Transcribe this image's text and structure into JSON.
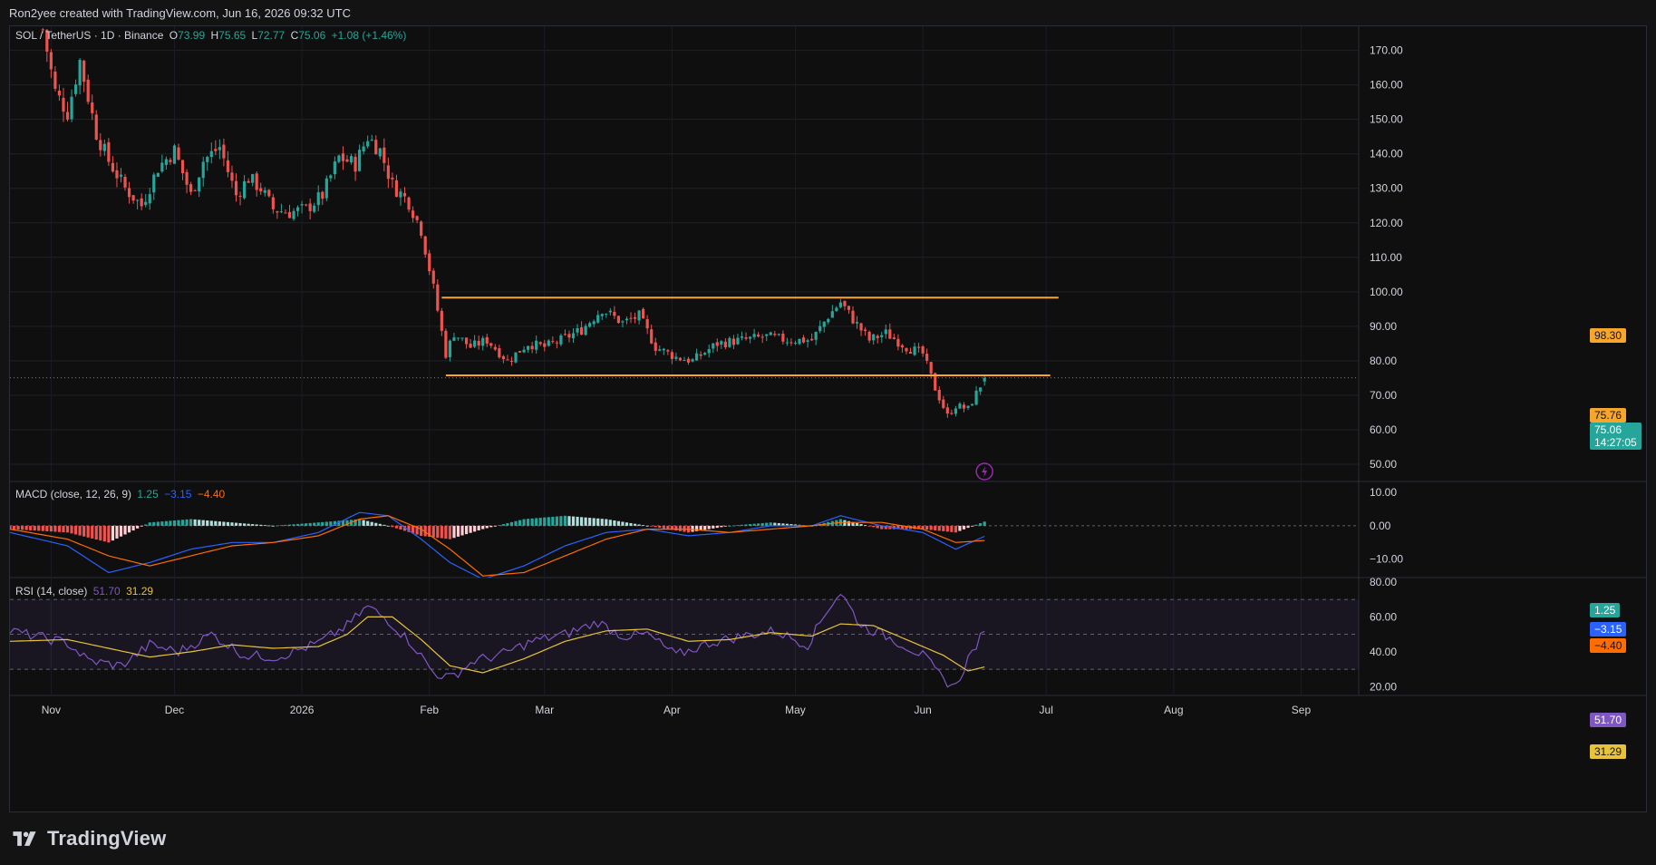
{
  "header": {
    "text": "Ron2yee created with TradingView.com, Jun 16, 2026 09:32 UTC"
  },
  "legend": {
    "symbol": "SOL / TetherUS · 1D · Binance",
    "o_label": "O",
    "o_value": "73.99",
    "h_label": "H",
    "h_value": "75.65",
    "l_label": "L",
    "l_value": "72.77",
    "c_label": "C",
    "c_value": "75.06",
    "change": "+1.08 (+1.46%)"
  },
  "macd_legend": {
    "title": "MACD (close, 12, 26, 9)",
    "v1": "1.25",
    "v2": "−3.15",
    "v3": "−4.40"
  },
  "rsi_legend": {
    "title": "RSI (14, close)",
    "v1": "51.70",
    "v2": "31.29"
  },
  "price_tags": {
    "resistance": "98.30",
    "support": "75.76",
    "last": "75.06",
    "countdown": "14:27:05",
    "macd_hist": "1.25",
    "macd_line": "−3.15",
    "macd_signal": "−4.40",
    "rsi": "51.70",
    "rsi_ma": "31.29"
  },
  "price_axis": [
    "170.00",
    "160.00",
    "150.00",
    "140.00",
    "130.00",
    "120.00",
    "110.00",
    "100.00",
    "90.00",
    "80.00",
    "70.00",
    "60.00",
    "50.00"
  ],
  "macd_axis": [
    "10.00",
    "0.00",
    "−10.00"
  ],
  "rsi_axis": [
    "80.00",
    "60.00",
    "40.00",
    "20.00"
  ],
  "time_axis": [
    "Nov",
    "Dec",
    "2026",
    "Feb",
    "Mar",
    "Apr",
    "May",
    "Jun",
    "Jul",
    "Aug",
    "Sep"
  ],
  "footer": {
    "brand": "TradingView"
  },
  "colors": {
    "up": "#26a69a",
    "down": "#ef5350",
    "level": "#f7a62c",
    "macd": "#2962ff",
    "signal": "#ff6d00",
    "rsi": "#7e57c2",
    "rsi_ma": "#e6c33a"
  },
  "chart_data": [
    {
      "type": "candlestick",
      "title": "SOL / TetherUS · 1D · Binance",
      "x_range": [
        "2025-10-22",
        "2026-09-15"
      ],
      "ylim": [
        45,
        177
      ],
      "levels": [
        {
          "label": "98.30",
          "value": 98.3,
          "from": "2026-02-04",
          "to": "2026-07-04"
        },
        {
          "label": "75.76",
          "value": 75.76,
          "from": "2026-02-05",
          "to": "2026-07-02"
        }
      ],
      "last_close": 75.06,
      "close_path": [
        [
          "2025-10-30",
          176
        ],
        [
          "2025-11-02",
          158
        ],
        [
          "2025-11-05",
          152
        ],
        [
          "2025-11-08",
          167
        ],
        [
          "2025-11-12",
          146
        ],
        [
          "2025-11-15",
          138
        ],
        [
          "2025-11-19",
          130
        ],
        [
          "2025-11-23",
          125
        ],
        [
          "2025-11-27",
          136
        ],
        [
          "2025-12-01",
          141
        ],
        [
          "2025-12-05",
          128
        ],
        [
          "2025-12-08",
          138
        ],
        [
          "2025-12-12",
          142
        ],
        [
          "2025-12-16",
          128
        ],
        [
          "2025-12-19",
          133
        ],
        [
          "2025-12-22",
          130
        ],
        [
          "2025-12-25",
          124
        ],
        [
          "2025-12-29",
          123
        ],
        [
          "2026-01-02",
          124
        ],
        [
          "2026-01-06",
          128
        ],
        [
          "2026-01-10",
          139
        ],
        [
          "2026-01-14",
          137
        ],
        [
          "2026-01-17",
          145
        ],
        [
          "2026-01-20",
          141
        ],
        [
          "2026-01-23",
          131
        ],
        [
          "2026-01-27",
          126
        ],
        [
          "2026-01-30",
          118
        ],
        [
          "2026-02-02",
          101
        ],
        [
          "2026-02-05",
          82
        ],
        [
          "2026-02-07",
          88
        ],
        [
          "2026-02-11",
          84
        ],
        [
          "2026-02-15",
          86
        ],
        [
          "2026-02-20",
          80
        ],
        [
          "2026-02-25",
          85
        ],
        [
          "2026-03-01",
          84
        ],
        [
          "2026-03-05",
          86
        ],
        [
          "2026-03-10",
          89
        ],
        [
          "2026-03-15",
          95
        ],
        [
          "2026-03-20",
          91
        ],
        [
          "2026-03-24",
          93
        ],
        [
          "2026-03-28",
          84
        ],
        [
          "2026-04-02",
          81
        ],
        [
          "2026-04-06",
          80
        ],
        [
          "2026-04-12",
          85
        ],
        [
          "2026-04-18",
          86
        ],
        [
          "2026-04-24",
          87
        ],
        [
          "2026-04-29",
          86
        ],
        [
          "2026-05-05",
          86
        ],
        [
          "2026-05-09",
          93
        ],
        [
          "2026-05-12",
          97
        ],
        [
          "2026-05-15",
          92
        ],
        [
          "2026-05-19",
          86
        ],
        [
          "2026-05-23",
          88
        ],
        [
          "2026-05-28",
          84
        ],
        [
          "2026-06-01",
          82
        ],
        [
          "2026-06-04",
          72
        ],
        [
          "2026-06-07",
          64
        ],
        [
          "2026-06-09",
          67
        ],
        [
          "2026-06-12",
          66
        ],
        [
          "2026-06-16",
          75.06
        ]
      ]
    },
    {
      "type": "line",
      "title": "MACD (close, 12, 26, 9)",
      "ylim": [
        -15.5,
        13
      ],
      "series": [
        {
          "name": "MACD",
          "last": -3.15,
          "points": [
            [
              "2025-10-22",
              -2
            ],
            [
              "2025-11-05",
              -6
            ],
            [
              "2025-11-15",
              -14
            ],
            [
              "2025-11-25",
              -11
            ],
            [
              "2025-12-05",
              -7
            ],
            [
              "2025-12-15",
              -5
            ],
            [
              "2025-12-25",
              -5
            ],
            [
              "2026-01-05",
              -2
            ],
            [
              "2026-01-15",
              4
            ],
            [
              "2026-01-22",
              3
            ],
            [
              "2026-01-30",
              -4
            ],
            [
              "2026-02-06",
              -11
            ],
            [
              "2026-02-14",
              -16
            ],
            [
              "2026-02-24",
              -12
            ],
            [
              "2026-03-06",
              -6
            ],
            [
              "2026-03-16",
              -2
            ],
            [
              "2026-03-26",
              -1
            ],
            [
              "2026-04-05",
              -3
            ],
            [
              "2026-04-15",
              -2
            ],
            [
              "2026-04-25",
              0
            ],
            [
              "2026-05-05",
              0
            ],
            [
              "2026-05-12",
              3
            ],
            [
              "2026-05-22",
              0
            ],
            [
              "2026-06-01",
              -2
            ],
            [
              "2026-06-09",
              -7
            ],
            [
              "2026-06-16",
              -3.15
            ]
          ]
        },
        {
          "name": "Signal",
          "last": -4.4,
          "points": [
            [
              "2025-10-22",
              -1
            ],
            [
              "2025-11-05",
              -4
            ],
            [
              "2025-11-15",
              -9
            ],
            [
              "2025-11-25",
              -12
            ],
            [
              "2025-12-05",
              -9
            ],
            [
              "2025-12-15",
              -6
            ],
            [
              "2025-12-25",
              -5
            ],
            [
              "2026-01-05",
              -3
            ],
            [
              "2026-01-15",
              2
            ],
            [
              "2026-01-22",
              3
            ],
            [
              "2026-01-30",
              -1
            ],
            [
              "2026-02-06",
              -7
            ],
            [
              "2026-02-14",
              -15
            ],
            [
              "2026-02-24",
              -14
            ],
            [
              "2026-03-06",
              -9
            ],
            [
              "2026-03-16",
              -4
            ],
            [
              "2026-03-26",
              -1
            ],
            [
              "2026-04-05",
              -1
            ],
            [
              "2026-04-15",
              -2
            ],
            [
              "2026-04-25",
              -1
            ],
            [
              "2026-05-05",
              0
            ],
            [
              "2026-05-12",
              1
            ],
            [
              "2026-05-22",
              1
            ],
            [
              "2026-06-01",
              -1
            ],
            [
              "2026-06-09",
              -5
            ],
            [
              "2026-06-16",
              -4.4
            ]
          ]
        }
      ],
      "histogram_last": 1.25
    },
    {
      "type": "line",
      "title": "RSI (14, close)",
      "ylim": [
        15,
        82
      ],
      "bands": [
        30,
        50,
        70
      ],
      "series": [
        {
          "name": "RSI",
          "last": 51.7,
          "points": [
            [
              "2025-10-22",
              52
            ],
            [
              "2025-11-05",
              45
            ],
            [
              "2025-11-10",
              35
            ],
            [
              "2025-11-18",
              32
            ],
            [
              "2025-11-25",
              44
            ],
            [
              "2025-12-02",
              40
            ],
            [
              "2025-12-10",
              50
            ],
            [
              "2025-12-18",
              38
            ],
            [
              "2025-12-26",
              37
            ],
            [
              "2026-01-05",
              45
            ],
            [
              "2026-01-12",
              55
            ],
            [
              "2026-01-17",
              66
            ],
            [
              "2026-01-22",
              58
            ],
            [
              "2026-01-28",
              44
            ],
            [
              "2026-02-02",
              28
            ],
            [
              "2026-02-06",
              25
            ],
            [
              "2026-02-12",
              35
            ],
            [
              "2026-02-18",
              38
            ],
            [
              "2026-02-26",
              46
            ],
            [
              "2026-03-06",
              50
            ],
            [
              "2026-03-14",
              57
            ],
            [
              "2026-03-20",
              49
            ],
            [
              "2026-03-26",
              50
            ],
            [
              "2026-04-02",
              38
            ],
            [
              "2026-04-10",
              45
            ],
            [
              "2026-04-18",
              49
            ],
            [
              "2026-04-26",
              52
            ],
            [
              "2026-05-04",
              44
            ],
            [
              "2026-05-09",
              65
            ],
            [
              "2026-05-12",
              74
            ],
            [
              "2026-05-17",
              55
            ],
            [
              "2026-05-24",
              48
            ],
            [
              "2026-06-01",
              38
            ],
            [
              "2026-06-06",
              24
            ],
            [
              "2026-06-09",
              20
            ],
            [
              "2026-06-12",
              36
            ],
            [
              "2026-06-16",
              51.7
            ]
          ]
        },
        {
          "name": "RSI MA",
          "last": 31.29,
          "points": [
            [
              "2025-10-22",
              46
            ],
            [
              "2025-11-05",
              47
            ],
            [
              "2025-11-15",
              42
            ],
            [
              "2025-11-25",
              37
            ],
            [
              "2025-12-05",
              40
            ],
            [
              "2025-12-15",
              44
            ],
            [
              "2025-12-25",
              42
            ],
            [
              "2026-01-05",
              43
            ],
            [
              "2026-01-12",
              50
            ],
            [
              "2026-01-17",
              60
            ],
            [
              "2026-01-23",
              60
            ],
            [
              "2026-01-30",
              47
            ],
            [
              "2026-02-06",
              32
            ],
            [
              "2026-02-14",
              28
            ],
            [
              "2026-02-24",
              36
            ],
            [
              "2026-03-06",
              46
            ],
            [
              "2026-03-16",
              52
            ],
            [
              "2026-03-26",
              53
            ],
            [
              "2026-04-05",
              46
            ],
            [
              "2026-04-15",
              47
            ],
            [
              "2026-04-25",
              51
            ],
            [
              "2026-05-05",
              49
            ],
            [
              "2026-05-12",
              56
            ],
            [
              "2026-05-20",
              55
            ],
            [
              "2026-05-30",
              45
            ],
            [
              "2026-06-06",
              38
            ],
            [
              "2026-06-12",
              29
            ],
            [
              "2026-06-16",
              31.29
            ]
          ]
        }
      ]
    }
  ]
}
